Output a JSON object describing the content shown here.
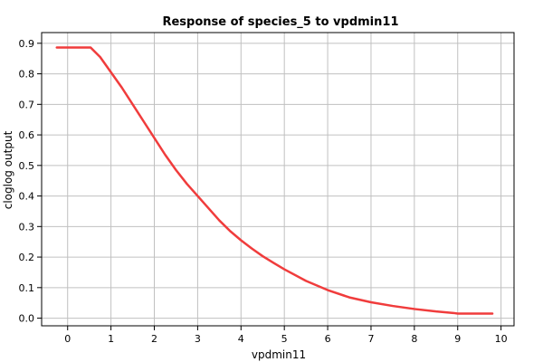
{
  "chart_data": {
    "type": "line",
    "title": "Response of species_5 to vpdmin11",
    "xlabel": "vpdmin11",
    "ylabel": "cloglog output",
    "xlim": [
      -0.6,
      10.3
    ],
    "ylim": [
      -0.025,
      0.935
    ],
    "xticks": [
      0,
      1,
      2,
      3,
      4,
      5,
      6,
      7,
      8,
      9,
      10
    ],
    "yticks": [
      0.0,
      0.1,
      0.2,
      0.3,
      0.4,
      0.5,
      0.6,
      0.7,
      0.8,
      0.9
    ],
    "xtick_labels": [
      "0",
      "1",
      "2",
      "3",
      "4",
      "5",
      "6",
      "7",
      "8",
      "9",
      "10"
    ],
    "ytick_labels": [
      "0.0",
      "0.1",
      "0.2",
      "0.3",
      "0.4",
      "0.5",
      "0.6",
      "0.7",
      "0.8",
      "0.9"
    ],
    "grid": true,
    "line_color": "#f03c3c",
    "series": [
      {
        "x": [
          -0.25,
          0.0,
          0.25,
          0.5,
          0.53,
          0.75,
          1.0,
          1.25,
          1.5,
          1.75,
          2.0,
          2.25,
          2.5,
          2.75,
          3.0,
          3.25,
          3.5,
          3.75,
          4.0,
          4.25,
          4.5,
          4.75,
          5.0,
          5.5,
          6.0,
          6.5,
          7.0,
          7.5,
          8.0,
          8.5,
          8.9,
          9.0,
          9.5,
          9.8
        ],
        "y": [
          0.886,
          0.886,
          0.886,
          0.886,
          0.886,
          0.855,
          0.805,
          0.755,
          0.7,
          0.645,
          0.59,
          0.535,
          0.485,
          0.44,
          0.4,
          0.36,
          0.32,
          0.285,
          0.255,
          0.228,
          0.203,
          0.181,
          0.16,
          0.122,
          0.092,
          0.068,
          0.052,
          0.04,
          0.03,
          0.022,
          0.017,
          0.015,
          0.015,
          0.015
        ]
      }
    ]
  }
}
